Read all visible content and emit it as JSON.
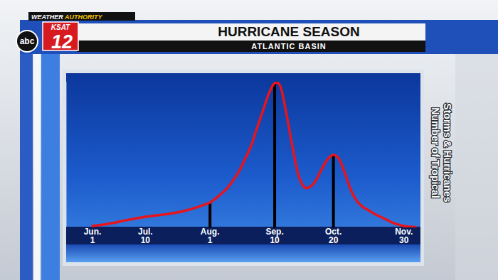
{
  "chart_data": {
    "type": "line",
    "title": "HURRICANE SEASON",
    "subtitle": "ATLANTIC BASIN",
    "ylabel": "Number of Tropical Storms & Hurricanes",
    "annotations": [
      "WEATHER AUTHORITY",
      "KSAT",
      "12",
      "abc"
    ],
    "categories": [
      "Jun. 1",
      null,
      null,
      null,
      null,
      null,
      null,
      null,
      null,
      "Jul. 10",
      null,
      null,
      null,
      null,
      null,
      null,
      null,
      null,
      null,
      null,
      "Aug. 1",
      null,
      null,
      null,
      null,
      null,
      null,
      null,
      null,
      null,
      null,
      "Sep. 10",
      null,
      null,
      null,
      null,
      null,
      null,
      null,
      null,
      null,
      "Oct. 20",
      null,
      null,
      null,
      null,
      null,
      null,
      null,
      null,
      null,
      null,
      null,
      "Nov. 30",
      null,
      null
    ],
    "series": [
      {
        "color": "#e8141c",
        "values": [
          1.0,
          1.5,
          2.0,
          2.7,
          3.4,
          4.4,
          5.1,
          5.9,
          6.6,
          7.3,
          7.8,
          8.3,
          8.8,
          9.3,
          10.0,
          10.7,
          11.7,
          12.9,
          14.1,
          15.6,
          17.1,
          20.0,
          23.4,
          27.3,
          32.7,
          39.0,
          47.3,
          56.1,
          68.3,
          80.0,
          91.7,
          99.0,
          96.6,
          78.0,
          56.1,
          36.6,
          27.8,
          27.8,
          32.2,
          40.0,
          46.8,
          49.8,
          46.8,
          36.6,
          25.4,
          18.0,
          14.1,
          11.7,
          9.3,
          7.3,
          5.4,
          3.4,
          2.0,
          1.0,
          0.5,
          0.2
        ]
      },
      {
        "type": "bar",
        "color": "#000000",
        "values": [
          null,
          null,
          null,
          null,
          null,
          null,
          null,
          null,
          null,
          null,
          null,
          null,
          null,
          null,
          null,
          null,
          null,
          null,
          null,
          null,
          17.1,
          null,
          null,
          null,
          null,
          null,
          null,
          null,
          null,
          null,
          null,
          99.0,
          null,
          null,
          null,
          null,
          null,
          null,
          null,
          null,
          null,
          49.8,
          null,
          null,
          null,
          null,
          null,
          null,
          null,
          null,
          null,
          null,
          null,
          null,
          null,
          null
        ]
      }
    ],
    "ylim": [
      0,
      100
    ],
    "tick_labels": "x",
    "grid": false
  }
}
